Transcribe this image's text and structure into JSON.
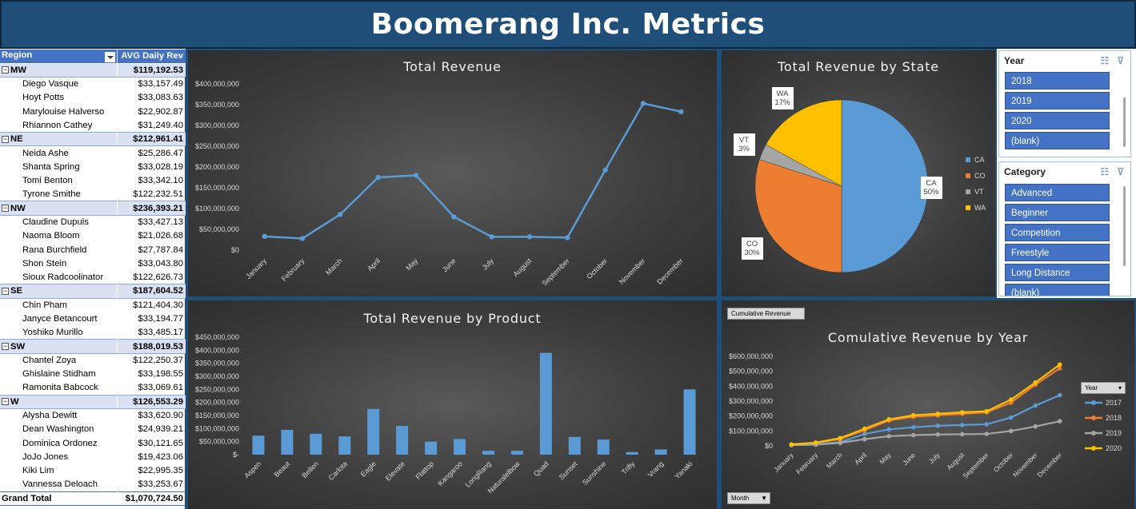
{
  "header": {
    "title": "Boomerang Inc. Metrics"
  },
  "pivot": {
    "col_region": "Region",
    "col_avg": "AVG Daily Rev",
    "groups": [
      {
        "name": "MW",
        "value": "$119,192.53",
        "people": [
          [
            "Diego Vasque",
            "$33,157.49"
          ],
          [
            "Hoyt Potts",
            "$33,083.63"
          ],
          [
            "Marylouise Halverso",
            "$22,902.87"
          ],
          [
            "Rhiannon Cathey",
            "$31,249.40"
          ]
        ]
      },
      {
        "name": "NE",
        "value": "$212,961.41",
        "people": [
          [
            "Neida Ashe",
            "$25,286.47"
          ],
          [
            "Shanta Spring",
            "$33,028.19"
          ],
          [
            "Tomi Benton",
            "$33,342.10"
          ],
          [
            "Tyrone Smithe",
            "$122,232.51"
          ]
        ]
      },
      {
        "name": "NW",
        "value": "$236,393.21",
        "people": [
          [
            "Claudine Dupuis",
            "$33,427.13"
          ],
          [
            "Naoma Bloom",
            "$21,026.68"
          ],
          [
            "Rana Burchfield",
            "$27,787.84"
          ],
          [
            "Shon Stein",
            "$33,043.80"
          ],
          [
            "Sioux Radcoolinator",
            "$122,626.73"
          ]
        ]
      },
      {
        "name": "SE",
        "value": "$187,604.52",
        "people": [
          [
            "Chin Pham",
            "$121,404.30"
          ],
          [
            "Janyce Betancourt",
            "$33,194.77"
          ],
          [
            "Yoshiko Murillo",
            "$33,485.17"
          ]
        ]
      },
      {
        "name": "SW",
        "value": "$188,019.53",
        "people": [
          [
            "Chantel Zoya",
            "$122,250.37"
          ],
          [
            "Ghislaine Stidham",
            "$33,198.55"
          ],
          [
            "Ramonita Babcock",
            "$33,069.61"
          ]
        ]
      },
      {
        "name": "W",
        "value": "$126,553.29",
        "people": [
          [
            "Alysha Dewitt",
            "$33,620.90"
          ],
          [
            "Dean Washington",
            "$24,939.21"
          ],
          [
            "Dominica Ordonez",
            "$30,121.65"
          ],
          [
            "JoJo Jones",
            "$19,423.06"
          ],
          [
            "Kiki Lim",
            "$22,995.35"
          ],
          [
            "Vannessa Deloach",
            "$33,253.67"
          ]
        ]
      }
    ],
    "total_label": "Grand Total",
    "total_value": "$1,070,724.50"
  },
  "slicers": {
    "year": {
      "title": "Year",
      "items": [
        "2018",
        "2019",
        "2020",
        "(blank)"
      ]
    },
    "category": {
      "title": "Category",
      "items": [
        "Advanced",
        "Beginner",
        "Competition",
        "Freestyle",
        "Long Distance",
        "(blank)"
      ]
    }
  },
  "buttons": {
    "cumulative_field": "Cumulative Revenue",
    "year_field": "Year",
    "month_field": "Month"
  },
  "colors": {
    "banner": "#1f4e79",
    "accent": "#4472c4",
    "line_blue": "#5b9bd5",
    "orange": "#ed7d31",
    "gray": "#a5a5a5",
    "gold": "#ffc000"
  },
  "chart_data": [
    {
      "id": "total_revenue",
      "type": "line",
      "title": "Total Revenue",
      "categories": [
        "January",
        "February",
        "March",
        "April",
        "May",
        "June",
        "July",
        "August",
        "September",
        "October",
        "November",
        "December"
      ],
      "values": [
        33000000,
        28000000,
        86000000,
        175000000,
        180000000,
        80000000,
        32000000,
        32000000,
        30000000,
        193000000,
        353000000,
        333000000
      ],
      "ylim": [
        0,
        400000000
      ],
      "yticks": [
        "$0",
        "$50,000,000",
        "$100,000,000",
        "$150,000,000",
        "$200,000,000",
        "$250,000,000",
        "$300,000,000",
        "$350,000,000",
        "$400,000,000"
      ],
      "grid": false
    },
    {
      "id": "revenue_by_state",
      "type": "pie",
      "title": "Total Revenue by State",
      "labels": [
        "CA",
        "CO",
        "VT",
        "WA"
      ],
      "values": [
        50,
        30,
        3,
        17
      ],
      "data_labels": [
        "CA\n50%",
        "CO\n30%",
        "VT\n3%",
        "WA\n17%"
      ],
      "legend": "right"
    },
    {
      "id": "revenue_by_product",
      "type": "bar",
      "title": "Total Revenue by Product",
      "categories": [
        "Aspen",
        "Beaut",
        "Bellen",
        "Carlota",
        "Eagle",
        "Elevate",
        "Flattop",
        "Kangaroo",
        "LongRang",
        "Naturalelbow",
        "Quad",
        "Sunset",
        "Sunshine",
        "Trifly",
        "Vrang",
        "Yanaki"
      ],
      "values": [
        73000000,
        95000000,
        80000000,
        70000000,
        175000000,
        110000000,
        50000000,
        60000000,
        15000000,
        15000000,
        390000000,
        68000000,
        58000000,
        10000000,
        20000000,
        250000000
      ],
      "ylim": [
        0,
        450000000
      ],
      "yticks": [
        "$-",
        "$50,000,000",
        "$100,000,000",
        "$150,000,000",
        "$200,000,000",
        "$250,000,000",
        "$300,000,000",
        "$350,000,000",
        "$400,000,000",
        "$450,000,000"
      ]
    },
    {
      "id": "cumulative_by_year",
      "type": "line",
      "title": "Comulative Revenue by Year",
      "categories": [
        "January",
        "February",
        "March",
        "April",
        "May",
        "June",
        "July",
        "August",
        "September",
        "October",
        "November",
        "December"
      ],
      "ylim": [
        0,
        600000000
      ],
      "yticks": [
        "$0",
        "$100,000,000",
        "$200,000,000",
        "$300,000,000",
        "$400,000,000",
        "$500,000,000",
        "$600,000,000"
      ],
      "series": [
        {
          "name": "2017",
          "values": [
            5000000,
            10000000,
            25000000,
            80000000,
            110000000,
            125000000,
            135000000,
            140000000,
            145000000,
            190000000,
            270000000,
            340000000
          ]
        },
        {
          "name": "2018",
          "values": [
            8000000,
            20000000,
            45000000,
            105000000,
            170000000,
            195000000,
            205000000,
            215000000,
            225000000,
            290000000,
            410000000,
            520000000
          ]
        },
        {
          "name": "2019",
          "values": [
            5000000,
            8000000,
            20000000,
            45000000,
            65000000,
            72000000,
            76000000,
            78000000,
            80000000,
            100000000,
            130000000,
            165000000
          ]
        },
        {
          "name": "2020",
          "values": [
            10000000,
            22000000,
            52000000,
            115000000,
            178000000,
            205000000,
            215000000,
            225000000,
            232000000,
            310000000,
            425000000,
            545000000
          ]
        }
      ],
      "legend": "right"
    }
  ]
}
